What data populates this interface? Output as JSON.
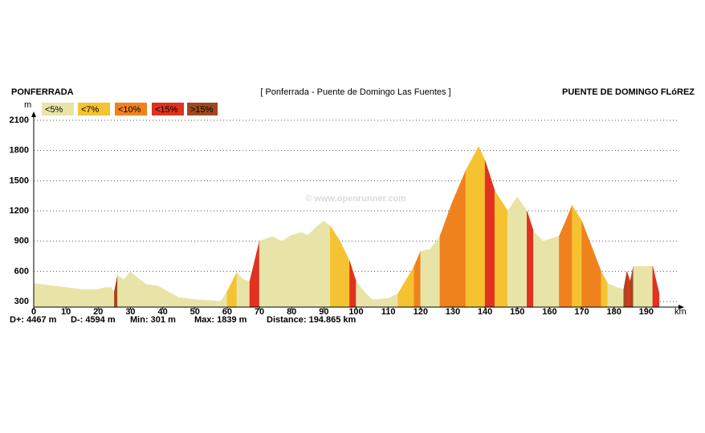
{
  "chart_data": {
    "type": "elevation-profile",
    "title": "[ Ponferrada - Puente de Domingo Las Fuentes ]",
    "start_label": "PONFERRADA",
    "end_label": "PUENTE DE DOMINGO FLóREZ",
    "y_label": "m",
    "x_label": "km",
    "watermark": "© www.openrunner.com",
    "legend": [
      {
        "label": "<5%",
        "value": 5,
        "color": "#e8e4a8"
      },
      {
        "label": "<7%",
        "value": 7,
        "color": "#f5c232"
      },
      {
        "label": "<10%",
        "value": 10,
        "color": "#f0821e"
      },
      {
        "label": "<15%",
        "value": 15,
        "color": "#e0321e"
      },
      {
        "label": ">15%",
        "value": 15,
        "color": "#a0481e"
      }
    ],
    "stats": [
      "D+: 4467 m",
      "D-: 4594 m",
      "Min: 301 m",
      "Max: 1839 m",
      "Distance: 194.865 km"
    ],
    "x": [
      0,
      5,
      10,
      15,
      20,
      22,
      24,
      25,
      26,
      28,
      30,
      32,
      35,
      38,
      40,
      45,
      50,
      55,
      58,
      60,
      63,
      65,
      67,
      70,
      74,
      77,
      80,
      83,
      85,
      88,
      90,
      92,
      95,
      98,
      100,
      103,
      105,
      110,
      113,
      118,
      120,
      123,
      126,
      130,
      134,
      138,
      140,
      143,
      147,
      150,
      153,
      155,
      158,
      160,
      163,
      165,
      167,
      170,
      173,
      176,
      178,
      181,
      183,
      184,
      185,
      186,
      192,
      194
    ],
    "values": [
      480,
      460,
      440,
      420,
      420,
      440,
      440,
      400,
      560,
      520,
      600,
      540,
      470,
      460,
      430,
      340,
      320,
      310,
      301,
      400,
      590,
      520,
      500,
      900,
      945,
      900,
      960,
      985,
      960,
      1050,
      1100,
      1050,
      900,
      700,
      500,
      380,
      320,
      330,
      380,
      650,
      800,
      820,
      950,
      1300,
      1600,
      1839,
      1700,
      1400,
      1200,
      1340,
      1200,
      1000,
      900,
      920,
      950,
      1100,
      1255,
      1100,
      850,
      600,
      480,
      440,
      420,
      600,
      500,
      650,
      650,
      380
    ],
    "xlim": [
      0,
      200
    ],
    "ylim": [
      245,
      2100
    ],
    "xticks": [
      0,
      10,
      20,
      30,
      40,
      50,
      60,
      70,
      80,
      90,
      100,
      110,
      120,
      130,
      140,
      150,
      160,
      170,
      180,
      190
    ],
    "yticks": [
      300,
      600,
      900,
      1200,
      1500,
      1800,
      2100
    ],
    "grid": true
  }
}
